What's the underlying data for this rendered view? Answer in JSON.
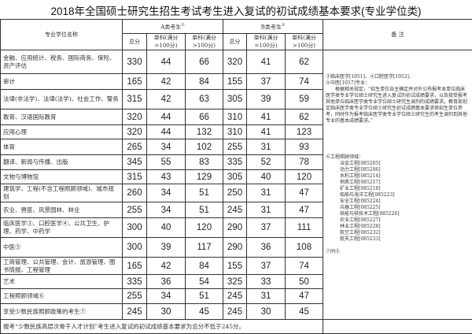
{
  "title": "2018年全国硕士研究生招生考试考生进入复试的初试成绩基本要求(专业学位类)",
  "header": {
    "name": "专业学位名称",
    "a_group": "A类考生",
    "a_mark": "①",
    "b_group": "B类考生",
    "b_mark": "②",
    "total": "总分",
    "single_eq": "单科(满分=100分)",
    "single_gt": "单科(满分>100分)",
    "notes": "备 注"
  },
  "rows": [
    {
      "name": "金融、应用统计、税务、国际商务、保险、资产评估",
      "a": [
        "330",
        "44",
        "66"
      ],
      "b": [
        "320",
        "41",
        "62"
      ]
    },
    {
      "name": "审计",
      "a": [
        "165",
        "42",
        "84"
      ],
      "b": [
        "155",
        "37",
        "74"
      ]
    },
    {
      "name": "法律(非法学)、法律(法学)、社会工作、警务",
      "a": [
        "315",
        "42",
        "63"
      ],
      "b": [
        "305",
        "39",
        "59"
      ]
    },
    {
      "name": "教育、汉语国际教育",
      "a": [
        "320",
        "44",
        "66"
      ],
      "b": [
        "310",
        "41",
        "62"
      ]
    },
    {
      "name": "应用心理",
      "a": [
        "320",
        "44",
        "132"
      ],
      "b": [
        "310",
        "41",
        "123"
      ]
    },
    {
      "name": "体育",
      "a": [
        "265",
        "34",
        "102"
      ],
      "b": [
        "255",
        "31",
        "93"
      ]
    },
    {
      "name": "翻译、新闻与传播、出版",
      "a": [
        "345",
        "55",
        "83"
      ],
      "b": [
        "335",
        "52",
        "78"
      ]
    },
    {
      "name": "文物与博物馆",
      "a": [
        "315",
        "43",
        "129"
      ],
      "b": [
        "305",
        "40",
        "120"
      ]
    },
    {
      "name": "建筑学、工程(不含工程照顾领域)、城市规划",
      "a": [
        "260",
        "34",
        "51"
      ],
      "b": [
        "250",
        "31",
        "47"
      ]
    },
    {
      "name": "农业、兽医、风景园林、林业",
      "a": [
        "255",
        "34",
        "51"
      ],
      "b": [
        "245",
        "31",
        "47"
      ]
    },
    {
      "name": "临床医学③、口腔医学④、公共卫生、护理、药学、中药学",
      "a": [
        "300",
        "40",
        "120"
      ],
      "b": [
        "290",
        "37",
        "111"
      ]
    },
    {
      "name": "中医⑤",
      "a": [
        "300",
        "39",
        "117"
      ],
      "b": [
        "290",
        "36",
        "108"
      ]
    },
    {
      "name": "工商管理、公共管理、会计、旅游管理、图书情报、工程管理",
      "a": [
        "165",
        "42",
        "84"
      ],
      "b": [
        "155",
        "37",
        "74"
      ]
    },
    {
      "name": "艺术",
      "a": [
        "335",
        "36",
        "54"
      ],
      "b": [
        "325",
        "33",
        "50"
      ]
    },
    {
      "name": "工程照顾领域⑥",
      "a": [
        "255",
        "34",
        "51"
      ],
      "b": [
        "245",
        "31",
        "47"
      ]
    },
    {
      "name": "享受少数民族照顾政策的考生⑦",
      "a": [
        "245",
        "30",
        "45"
      ],
      "b": [
        "245",
        "30",
        "45"
      ]
    }
  ],
  "notes": {
    "med_head1": "③临床医学[1051]、④口腔医学[1052]、",
    "med_head2": "⑤中医[1057]专业：",
    "med_text": "根据相关规定，“招生单位自主确定并对外公布报考本单位临床医学类专业学位硕士研究生进入复试的初试成绩要求，以及接受报考其他单位临床医学类专业学位硕士研究生调剂的成绩要求。教育部划定临床医学类专业学位硕士研究生初试成绩基本要求供招生单位参考，同时作为报考临床医学类专业学位硕士研究生的考生调剂到其他专业的基本成绩要求。”",
    "eng_head": "⑥工程照顾领域：",
    "eng_fields": [
      "冶金工程[085205]",
      "动力工程[085206]",
      "水利工程[085214]",
      "地质工程[085217]",
      "矿业工程[085218]",
      "船舶与海洋工程[085223]",
      "安全工程[085224]",
      "兵器工程[085225]",
      "核能与核技术工程[085226]",
      "农业工程[085227]",
      "林业工程[085228]",
      "航空工程[085232]",
      "航天工程[085233]"
    ],
    "same": "⑦同⑤"
  },
  "footer": "报考“少数民族高层次骨干人才计划”考生进入复试的初试成绩基本要求为总分不低于245分。"
}
